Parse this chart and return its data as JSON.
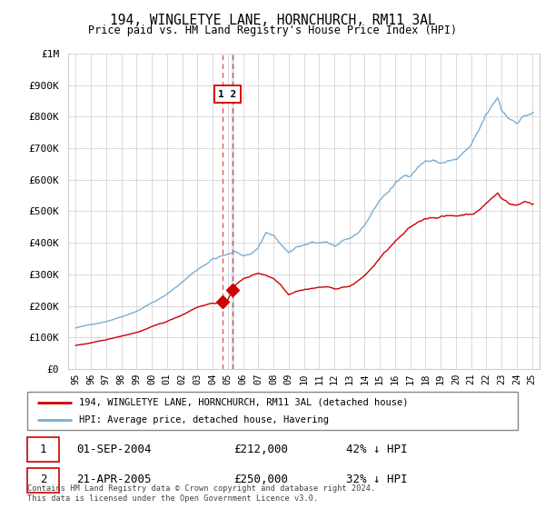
{
  "title": "194, WINGLETYE LANE, HORNCHURCH, RM11 3AL",
  "subtitle": "Price paid vs. HM Land Registry's House Price Index (HPI)",
  "legend_label_red": "194, WINGLETYE LANE, HORNCHURCH, RM11 3AL (detached house)",
  "legend_label_blue": "HPI: Average price, detached house, Havering",
  "footnote": "Contains HM Land Registry data © Crown copyright and database right 2024.\nThis data is licensed under the Open Government Licence v3.0.",
  "sale1_date": "01-SEP-2004",
  "sale1_price": "£212,000",
  "sale1_hpi": "42% ↓ HPI",
  "sale2_date": "21-APR-2005",
  "sale2_price": "£250,000",
  "sale2_hpi": "32% ↓ HPI",
  "ylim": [
    0,
    1000000
  ],
  "yticks": [
    0,
    100000,
    200000,
    300000,
    400000,
    500000,
    600000,
    700000,
    800000,
    900000
  ],
  "ytick_labels": [
    "£0",
    "£100K",
    "£200K",
    "£300K",
    "£400K",
    "£500K",
    "£600K",
    "£700K",
    "£800K",
    "£900K"
  ],
  "top_ytick": 1000000,
  "top_ytick_label": "£1M",
  "red_color": "#cc0000",
  "blue_color": "#7aadd4",
  "vline_color": "#dd4444",
  "grid_color": "#cccccc",
  "sale1_x": 2004.67,
  "sale2_x": 2005.31,
  "xlim": [
    1994.5,
    2025.5
  ],
  "xticks": [
    1995,
    1996,
    1997,
    1998,
    1999,
    2000,
    2001,
    2002,
    2003,
    2004,
    2005,
    2006,
    2007,
    2008,
    2009,
    2010,
    2011,
    2012,
    2013,
    2014,
    2015,
    2016,
    2017,
    2018,
    2019,
    2020,
    2021,
    2022,
    2023,
    2024,
    2025
  ]
}
